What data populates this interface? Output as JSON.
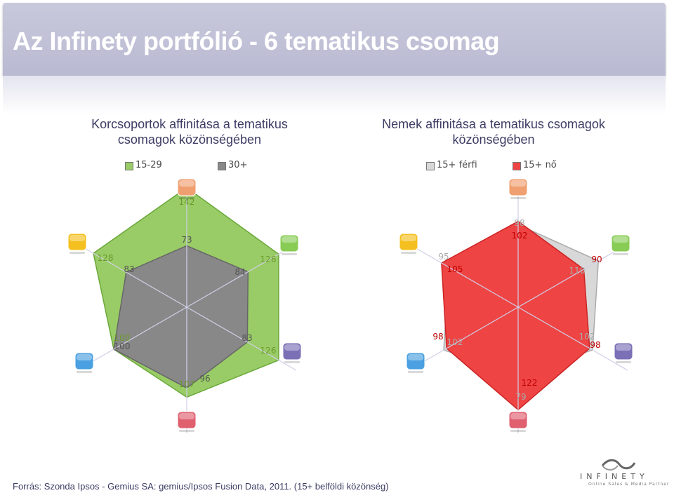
{
  "slide": {
    "title": "Az Infinety portfólió - 6 tematikus csomag",
    "source": "Forrás: Szonda Ipsos - Gemius SA: gemius/Ipsos Fusion Data, 2011. (15+ belföldi közönség)",
    "logo_text": "INFINETY",
    "logo_sub": "Online Sales & Media Partner"
  },
  "chart_data": [
    {
      "type": "radar",
      "title_line1": "Korcsoportok affinitása a tematikus",
      "title_line2": "csomagok közönségében",
      "axes": [
        "top",
        "upper-right",
        "lower-right",
        "bottom",
        "lower-left",
        "upper-left"
      ],
      "axis_icons": [
        "bag-icon",
        "people-icon",
        "info-icon",
        "heart-icon",
        "globe-icon",
        "car-icon"
      ],
      "axis_icon_colors": [
        "#f0a070",
        "#88cc55",
        "#7b6fb5",
        "#e06070",
        "#4aa0e0",
        "#f4c020"
      ],
      "rmax": 150,
      "series": [
        {
          "name": "15-29",
          "values": [
            142,
            126,
            126,
            107,
            100,
            128
          ],
          "color": "#99cc66",
          "stroke": "#6aa83a",
          "label_color": "#6a9a2a"
        },
        {
          "name": "30+",
          "values": [
            73,
            84,
            83,
            96,
            100,
            83
          ],
          "color": "#888888",
          "stroke": "#666666",
          "label_color": "#555555"
        }
      ]
    },
    {
      "type": "radar",
      "title_line1": "Nemek affinitása a tematikus csomagok",
      "title_line2": "közönségében",
      "axes": [
        "top",
        "upper-right",
        "lower-right",
        "bottom",
        "lower-left",
        "upper-left"
      ],
      "axis_icons": [
        "bag-icon",
        "people-icon",
        "info-icon",
        "heart-icon",
        "globe-icon",
        "car-icon"
      ],
      "axis_icon_colors": [
        "#f0a070",
        "#88cc55",
        "#7b6fb5",
        "#e06070",
        "#4aa0e0",
        "#f4c020"
      ],
      "rmax": 150,
      "series": [
        {
          "name": "15+ férfi",
          "values": [
            98,
            110,
            102,
            79,
            102,
            95
          ],
          "color": "#d8d8d8",
          "stroke": "#aaaaaa",
          "label_color": "#aaaaaa"
        },
        {
          "name": "15+ nő",
          "values": [
            102,
            90,
            98,
            122,
            98,
            105
          ],
          "color": "#ee4444",
          "stroke": "#cc2222",
          "label_color": "#c00000"
        }
      ]
    }
  ]
}
